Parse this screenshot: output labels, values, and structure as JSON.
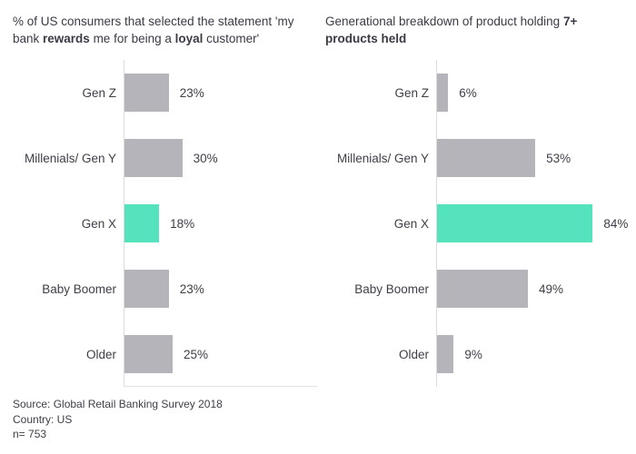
{
  "colors": {
    "bar_default": "#b5b4ba",
    "bar_highlight": "#55e3bd",
    "axis_line": "#dcdcdc",
    "text": "#3b3a46"
  },
  "chart_data": [
    {
      "type": "bar",
      "orientation": "horizontal",
      "title": "% of US consumers that selected the statement 'my bank rewards me for being a loyal customer'",
      "title_parts": [
        {
          "text": "% of US consumers that selected the statement 'my bank ",
          "bold": false
        },
        {
          "text": "rewards",
          "bold": true
        },
        {
          "text": " me for being a ",
          "bold": false
        },
        {
          "text": "loyal",
          "bold": true
        },
        {
          "text": " customer'",
          "bold": false
        }
      ],
      "categories": [
        "Gen Z",
        "Millenials/ Gen Y",
        "Gen X",
        "Baby Boomer",
        "Older"
      ],
      "values": [
        23,
        30,
        18,
        23,
        25
      ],
      "value_labels": [
        "23%",
        "30%",
        "18%",
        "23%",
        "25%"
      ],
      "highlight_index": 2,
      "xlim": [
        0,
        100
      ],
      "grid": false,
      "value_label_position": "right-of-bar"
    },
    {
      "type": "bar",
      "orientation": "horizontal",
      "title": "Generational breakdown of product holding 7+ products held",
      "title_parts": [
        {
          "text": "Generational breakdown of product holding ",
          "bold": false
        },
        {
          "text": "7+ products held",
          "bold": true
        }
      ],
      "categories": [
        "Gen Z",
        "Millenials/ Gen Y",
        "Gen X",
        "Baby Boomer",
        "Older"
      ],
      "values": [
        6,
        53,
        84,
        49,
        9
      ],
      "value_labels": [
        "6%",
        "53%",
        "84%",
        "49%",
        "9%"
      ],
      "highlight_index": 2,
      "xlim": [
        0,
        100
      ],
      "grid": false,
      "value_label_position": "right-of-bar"
    }
  ],
  "footer": {
    "lines": [
      "Source: Global Retail Banking Survey 2018",
      "Country: US",
      "n= 753"
    ]
  }
}
